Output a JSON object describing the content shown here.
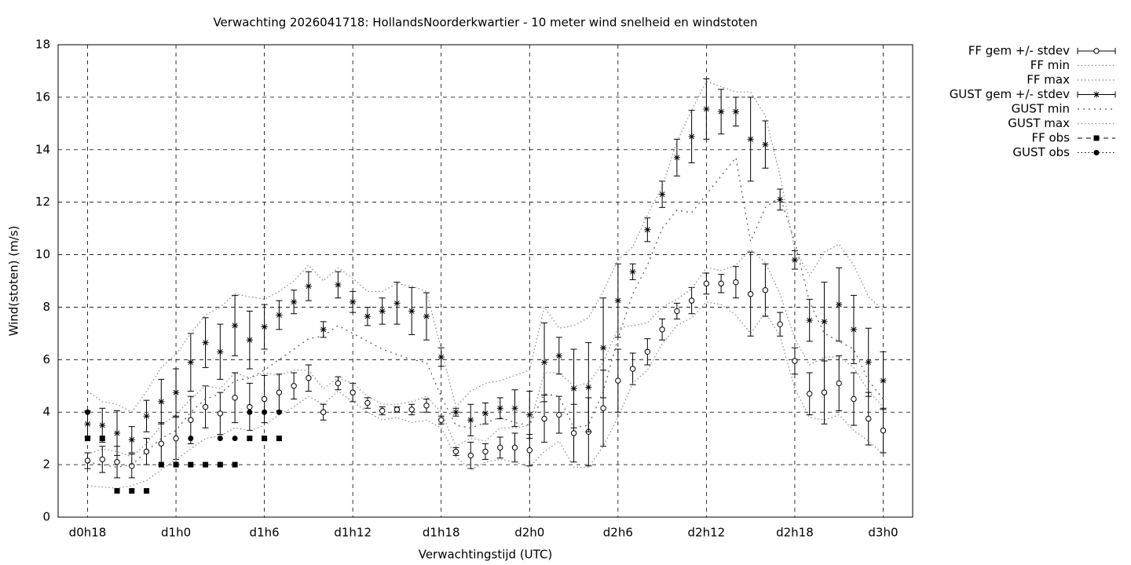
{
  "chart_data": {
    "type": "errorbar",
    "title": "Verwachting 2026041718: HollandsNoorderkwartier - 10 meter wind snelheid en windstoten",
    "xlabel": "Verwachtingstijd (UTC)",
    "ylabel": "Wind(stoten) (m/s)",
    "xlim": [
      16,
      74
    ],
    "ylim": [
      0,
      18
    ],
    "xticks": [
      {
        "value": 18,
        "label": "d0h18"
      },
      {
        "value": 24,
        "label": "d1h0"
      },
      {
        "value": 30,
        "label": "d1h6"
      },
      {
        "value": 36,
        "label": "d1h12"
      },
      {
        "value": 42,
        "label": "d1h18"
      },
      {
        "value": 48,
        "label": "d2h0"
      },
      {
        "value": 54,
        "label": "d2h6"
      },
      {
        "value": 60,
        "label": "d2h12"
      },
      {
        "value": 66,
        "label": "d2h18"
      },
      {
        "value": 72,
        "label": "d3h0"
      }
    ],
    "yticks": [
      0,
      2,
      4,
      6,
      8,
      10,
      12,
      14,
      16,
      18
    ],
    "grid": true,
    "legend": "outside-right",
    "x": [
      18,
      19,
      20,
      21,
      22,
      23,
      24,
      25,
      26,
      27,
      28,
      29,
      30,
      31,
      32,
      33,
      34,
      35,
      36,
      37,
      38,
      39,
      40,
      41,
      42,
      43,
      44,
      45,
      46,
      47,
      48,
      49,
      50,
      51,
      52,
      53,
      54,
      55,
      56,
      57,
      58,
      59,
      60,
      61,
      62,
      63,
      64,
      65,
      66,
      67,
      68,
      69,
      70,
      71,
      72
    ],
    "series": [
      {
        "name": "FF gem +/- stdev",
        "color": "#000000",
        "style": "errorbar",
        "marker": "circle",
        "values": [
          2.15,
          2.2,
          2.1,
          1.95,
          2.5,
          2.8,
          3.0,
          3.7,
          4.2,
          3.95,
          4.55,
          4.2,
          4.5,
          4.75,
          5.0,
          5.3,
          4.0,
          5.1,
          4.75,
          4.35,
          4.05,
          4.1,
          4.1,
          4.25,
          3.7,
          2.5,
          2.35,
          2.5,
          2.65,
          2.65,
          2.55,
          3.75,
          3.9,
          3.2,
          3.25,
          4.15,
          5.2,
          5.65,
          6.3,
          7.15,
          7.85,
          8.25,
          8.9,
          8.9,
          8.95,
          8.5,
          8.65,
          7.35,
          5.95,
          4.7,
          4.75,
          5.1,
          4.5,
          3.75,
          3.3
        ],
        "errors": [
          0.3,
          0.5,
          0.6,
          0.45,
          0.5,
          0.8,
          0.8,
          0.9,
          0.8,
          0.8,
          0.95,
          0.9,
          0.9,
          0.7,
          0.5,
          0.5,
          0.3,
          0.25,
          0.35,
          0.2,
          0.15,
          0.1,
          0.2,
          0.25,
          0.15,
          0.15,
          0.5,
          0.3,
          0.4,
          0.55,
          0.6,
          0.9,
          0.7,
          1.1,
          1.3,
          1.45,
          1.2,
          0.6,
          0.5,
          0.4,
          0.3,
          0.5,
          0.4,
          0.35,
          0.6,
          1.6,
          1.0,
          0.45,
          0.5,
          0.8,
          1.2,
          1.05,
          1.0,
          1.0,
          0.85
        ]
      },
      {
        "name": "FF min",
        "color": "#888888",
        "style": "dotted",
        "values": [
          1.2,
          1.15,
          1.1,
          1.2,
          1.4,
          1.8,
          2.2,
          2.6,
          3.0,
          3.1,
          3.4,
          3.3,
          3.5,
          3.9,
          4.2,
          4.6,
          4.3,
          4.8,
          4.4,
          4.0,
          3.7,
          3.8,
          3.6,
          3.7,
          3.4,
          2.3,
          1.8,
          2.1,
          2.2,
          2.1,
          1.9,
          2.5,
          2.9,
          1.9,
          1.9,
          2.7,
          3.8,
          5.1,
          5.6,
          6.6,
          7.3,
          7.6,
          8.2,
          8.1,
          7.7,
          7.0,
          7.8,
          6.9,
          4.9,
          3.8,
          3.7,
          3.9,
          3.3,
          2.9,
          2.4
        ]
      },
      {
        "name": "FF max",
        "color": "#888888",
        "style": "dotted",
        "values": [
          2.4,
          2.6,
          2.5,
          2.3,
          2.8,
          3.5,
          3.9,
          4.5,
          5.0,
          4.9,
          5.5,
          5.3,
          5.5,
          5.4,
          5.6,
          5.6,
          4.9,
          5.3,
          5.1,
          4.6,
          4.3,
          4.3,
          4.4,
          4.6,
          4.0,
          2.7,
          3.0,
          2.9,
          3.4,
          3.4,
          3.5,
          5.5,
          5.5,
          5.0,
          5.1,
          5.9,
          7.2,
          7.3,
          7.4,
          8.0,
          8.3,
          8.7,
          9.5,
          9.4,
          9.6,
          10.2,
          9.7,
          8.5,
          6.8,
          5.8,
          6.1,
          6.1,
          5.7,
          4.8,
          4.2
        ]
      },
      {
        "name": "GUST gem +/- stdev",
        "color": "#000000",
        "style": "errorbar",
        "marker": "star",
        "values": [
          3.55,
          3.5,
          3.2,
          2.95,
          3.85,
          4.4,
          4.75,
          5.9,
          6.65,
          6.3,
          7.3,
          6.75,
          7.25,
          7.7,
          8.2,
          8.8,
          7.15,
          8.85,
          8.2,
          7.65,
          7.85,
          8.15,
          7.85,
          7.65,
          6.1,
          4.0,
          3.7,
          3.95,
          4.15,
          4.15,
          3.9,
          5.9,
          6.15,
          4.9,
          4.95,
          6.45,
          8.25,
          9.35,
          10.95,
          12.3,
          13.7,
          14.5,
          15.55,
          15.45,
          15.45,
          14.4,
          14.2,
          12.1,
          9.8,
          7.5,
          7.45,
          8.1,
          7.15,
          5.9,
          5.2
        ],
        "errors": [
          0.5,
          0.65,
          0.85,
          0.5,
          0.6,
          0.85,
          0.9,
          1.1,
          0.95,
          1.05,
          1.15,
          1.1,
          0.85,
          0.55,
          0.45,
          0.55,
          0.3,
          0.5,
          0.4,
          0.35,
          0.5,
          0.8,
          0.9,
          0.9,
          0.35,
          0.15,
          0.6,
          0.4,
          0.4,
          0.7,
          0.9,
          1.5,
          0.7,
          1.5,
          1.7,
          1.9,
          1.4,
          0.3,
          0.45,
          0.5,
          0.7,
          1.0,
          1.15,
          0.85,
          0.55,
          1.6,
          0.9,
          0.4,
          0.35,
          0.8,
          1.5,
          1.4,
          1.3,
          1.3,
          1.1
        ]
      },
      {
        "name": "GUST min",
        "color": "#555555",
        "style": "sparse",
        "values": [
          2.1,
          2.0,
          1.9,
          2.0,
          2.5,
          3.0,
          3.3,
          4.0,
          4.5,
          4.7,
          5.2,
          5.3,
          5.6,
          6.0,
          6.4,
          6.8,
          6.9,
          7.3,
          7.0,
          6.7,
          6.4,
          6.2,
          6.0,
          5.9,
          4.6,
          3.5,
          3.4,
          3.6,
          3.8,
          3.6,
          3.5,
          4.7,
          4.6,
          3.4,
          3.5,
          4.8,
          6.8,
          8.5,
          9.6,
          11.0,
          11.7,
          11.6,
          12.3,
          13.0,
          13.7,
          10.5,
          11.8,
          12.2,
          10.5,
          8.2,
          7.0,
          6.7,
          6.4,
          5.2,
          4.5
        ]
      },
      {
        "name": "GUST max",
        "color": "#888888",
        "style": "dotted",
        "values": [
          4.8,
          4.4,
          4.3,
          4.0,
          4.8,
          5.7,
          6.2,
          7.0,
          7.7,
          8.0,
          8.5,
          8.4,
          8.3,
          8.6,
          9.0,
          9.6,
          9.0,
          9.5,
          9.1,
          8.6,
          8.6,
          8.9,
          8.8,
          8.6,
          6.4,
          4.2,
          4.8,
          5.1,
          5.2,
          5.4,
          5.6,
          8.0,
          7.2,
          7.3,
          7.6,
          8.6,
          9.8,
          10.3,
          11.5,
          12.6,
          14.3,
          15.5,
          16.6,
          16.4,
          16.2,
          16.2,
          15.3,
          13.0,
          10.2,
          9.2,
          10.1,
          10.4,
          9.6,
          8.4,
          7.9
        ]
      },
      {
        "name": "FF obs",
        "color": "#000000",
        "style": "points",
        "marker": "square",
        "x": [
          18,
          19,
          20,
          21,
          22,
          23,
          24,
          25,
          26,
          27,
          28,
          29,
          30,
          31
        ],
        "values": [
          3,
          3,
          1,
          1,
          1,
          2,
          2,
          2,
          2,
          2,
          2,
          3,
          3,
          3
        ]
      },
      {
        "name": "GUST obs",
        "color": "#000000",
        "style": "points",
        "marker": "dot",
        "x": [
          18,
          25,
          27,
          28,
          29,
          30,
          31
        ],
        "values": [
          4,
          3,
          3,
          3,
          4,
          4,
          4
        ]
      }
    ]
  }
}
